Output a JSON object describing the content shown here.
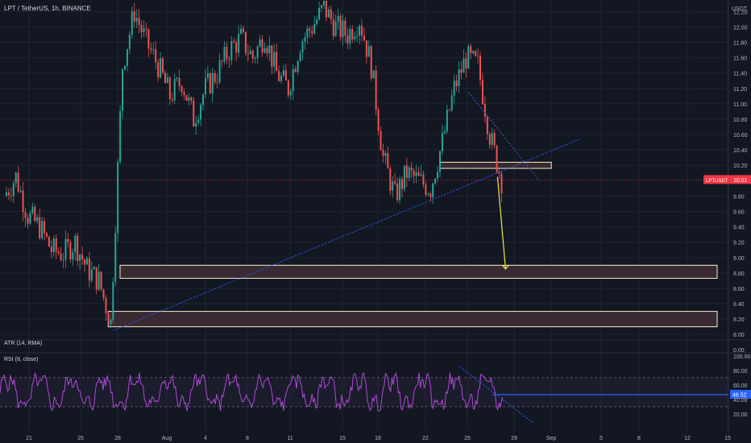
{
  "header": {
    "symbol_line": "LPT / TetherUS, 1h, BINANCE",
    "currency": "USDT"
  },
  "colors": {
    "background": "#131722",
    "grid": "#1f2433",
    "axis_text": "#b2b5be",
    "price_line": "#f23645",
    "up_candle": "#26a69a",
    "down_candle": "#ef5350",
    "zone_fill": "#3a2a33",
    "zone_stroke": "#f5f0c8",
    "trendline": "#2962ff",
    "arrow": "#f2e94e",
    "rsi_line": "#b04ad6",
    "rsi_band": "#2a2440",
    "rsi_level_line": "#2962ff"
  },
  "price_panel": {
    "yaxis_ticks": [
      "12.20",
      "12.00",
      "11.80",
      "11.60",
      "11.40",
      "11.20",
      "11.00",
      "10.80",
      "10.60",
      "10.40",
      "10.20",
      "9.80",
      "9.60",
      "9.40",
      "9.20",
      "9.00",
      "8.80",
      "8.60",
      "8.40",
      "8.20",
      "8.00"
    ],
    "last_price_label": "LPTUSDT",
    "last_price_value": "10.01"
  },
  "atr_panel": {
    "label": "ATR (14, RMA)"
  },
  "rsi_panel": {
    "label": "RSI (8, close)",
    "yaxis_ticks": [
      "100.00",
      "80.00",
      "60.00",
      "40.00",
      "20.00"
    ],
    "current_value": "46.52"
  },
  "xaxis": {
    "ticks": [
      "21",
      "25",
      "28",
      "Aug",
      "4",
      "8",
      "11",
      "15",
      "18",
      "22",
      "25",
      "29",
      "Sep",
      "5",
      "8",
      "12",
      "15"
    ]
  },
  "chart_data": {
    "type": "candlestick",
    "title": "LPT / TetherUS, 1h, BINANCE",
    "ylim": [
      7.95,
      12.35
    ],
    "last_price": 10.01,
    "series": [
      {
        "x": "Jul 18",
        "y": 9.8
      },
      {
        "x": "Jul 19",
        "y": 10.05
      },
      {
        "x": "Jul 20",
        "y": 9.55
      },
      {
        "x": "Jul 21",
        "y": 9.4
      },
      {
        "x": "Jul 22",
        "y": 9.1
      },
      {
        "x": "Jul 23",
        "y": 9.05
      },
      {
        "x": "Jul 24",
        "y": 9.2
      },
      {
        "x": "Jul 25",
        "y": 8.85
      },
      {
        "x": "Jul 26",
        "y": 8.7
      },
      {
        "x": "Jul 27",
        "y": 8.15
      },
      {
        "x": "Jul 28",
        "y": 11.5
      },
      {
        "x": "Jul 29",
        "y": 12.2
      },
      {
        "x": "Jul 30",
        "y": 11.8
      },
      {
        "x": "Jul 31",
        "y": 11.5
      },
      {
        "x": "Aug 1",
        "y": 11.1
      },
      {
        "x": "Aug 2",
        "y": 11.3
      },
      {
        "x": "Aug 3",
        "y": 10.8
      },
      {
        "x": "Aug 4",
        "y": 11.2
      },
      {
        "x": "Aug 5",
        "y": 11.4
      },
      {
        "x": "Aug 6",
        "y": 11.7
      },
      {
        "x": "Aug 7",
        "y": 11.85
      },
      {
        "x": "Aug 8",
        "y": 11.6
      },
      {
        "x": "Aug 9",
        "y": 11.9
      },
      {
        "x": "Aug 10",
        "y": 11.4
      },
      {
        "x": "Aug 11",
        "y": 11.2
      },
      {
        "x": "Aug 12",
        "y": 11.8
      },
      {
        "x": "Aug 13",
        "y": 12.0
      },
      {
        "x": "Aug 14",
        "y": 12.25
      },
      {
        "x": "Aug 15",
        "y": 12.0
      },
      {
        "x": "Aug 16",
        "y": 11.9
      },
      {
        "x": "Aug 17",
        "y": 12.1
      },
      {
        "x": "Aug 18",
        "y": 11.5
      },
      {
        "x": "Aug 19",
        "y": 10.3
      },
      {
        "x": "Aug 20",
        "y": 9.8
      },
      {
        "x": "Aug 21",
        "y": 10.1
      },
      {
        "x": "Aug 22",
        "y": 10.0
      },
      {
        "x": "Aug 23",
        "y": 9.9
      },
      {
        "x": "Aug 24",
        "y": 10.5
      },
      {
        "x": "Aug 25",
        "y": 11.2
      },
      {
        "x": "Aug 26",
        "y": 11.6
      },
      {
        "x": "Aug 27",
        "y": 11.5
      },
      {
        "x": "Aug 28",
        "y": 10.6
      },
      {
        "x": "Aug 29",
        "y": 10.01
      }
    ],
    "zones": [
      {
        "from": "Aug 24",
        "to": "Sep 2",
        "low": 10.16,
        "high": 10.24
      },
      {
        "from": "Jul 28",
        "to": "Sep 16",
        "low": 8.73,
        "high": 8.9
      },
      {
        "from": "Jul 27",
        "to": "Sep 16",
        "low": 8.1,
        "high": 8.3
      }
    ],
    "rsi": {
      "period": 8,
      "levels": [
        70,
        30
      ],
      "current": 46.52
    }
  }
}
